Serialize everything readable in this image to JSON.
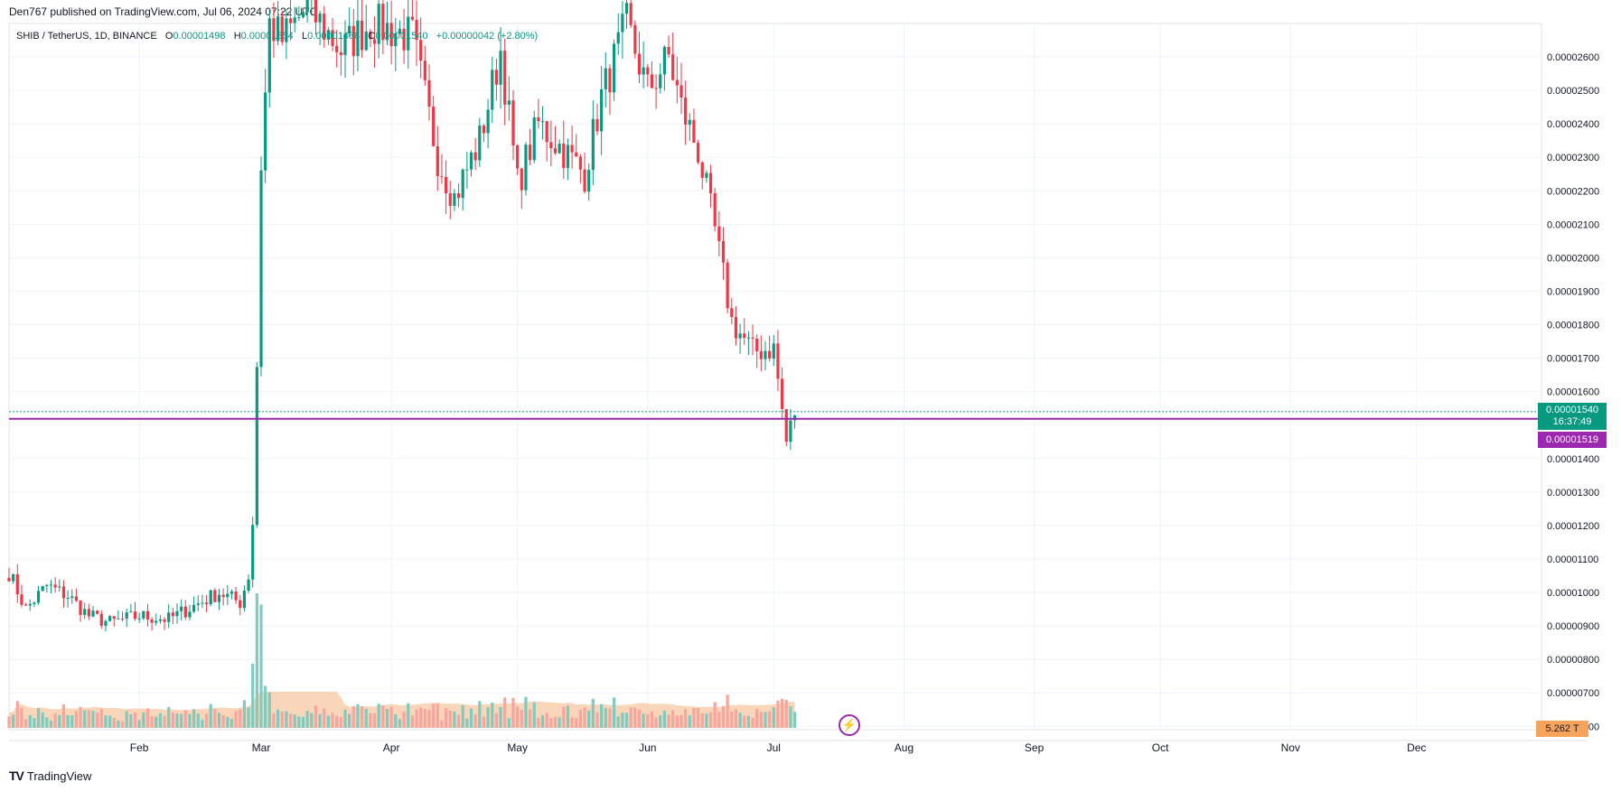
{
  "header": {
    "published": "Den767 published on TradingView.com, Jul 06, 2024 07:22 UTC",
    "symbol": "SHIB / TetherUS, 1D, BINANCE",
    "open_label": "O",
    "open": "0.00001498",
    "high_label": "H",
    "high": "0.00001554",
    "low_label": "L",
    "low": "0.00001488",
    "close_label": "C",
    "close": "0.00001540",
    "change": "+0.00000042 (+2.80%)"
  },
  "footer": {
    "brand": "TradingView",
    "logo": "tradingview-logo-icon"
  },
  "badges": {
    "last_price": "0.00001540",
    "countdown": "16:37:49",
    "ma_value": "0.00001519",
    "volume": "5.262 T"
  },
  "colors": {
    "up": "#089981",
    "down": "#f23645",
    "vol_up": "#7fcbbf",
    "vol_down": "#f7a59e",
    "vol_ma": "#f7c49b",
    "ma_line": "#9c27b0",
    "grid": "#f0f3fa",
    "axis_text": "#131722"
  },
  "chart_data": {
    "type": "candlestick",
    "symbol": "SHIB / TetherUS",
    "timeframe": "1D",
    "exchange": "BINANCE",
    "y_axis_ticks": [
      "0.00002600",
      "0.00002500",
      "0.00002400",
      "0.00002300",
      "0.00002200",
      "0.00002100",
      "0.00002000",
      "0.00001900",
      "0.00001800",
      "0.00001700",
      "0.00001600",
      "0.00001500",
      "0.00001400",
      "0.00001300",
      "0.00001200",
      "0.00001100",
      "0.00001000",
      "0.00000900",
      "0.00000800",
      "0.00000700",
      "0.00000600"
    ],
    "x_axis_ticks": [
      "Feb",
      "Mar",
      "Apr",
      "May",
      "Jun",
      "Jul",
      "Aug",
      "Sep",
      "Oct",
      "Nov",
      "Dec"
    ],
    "ylim": [
      5.9e-06,
      2.7e-05
    ],
    "last_price": 1.54e-05,
    "ma_value": 1.519e-05,
    "volume_label": "5.262 T",
    "anchor_points": [
      [
        "2024-01-01",
        1.06e-05
      ],
      [
        "2024-01-05",
        9.5e-06
      ],
      [
        "2024-01-10",
        1.02e-05
      ],
      [
        "2024-01-15",
        9.9e-06
      ],
      [
        "2024-01-20",
        9.3e-06
      ],
      [
        "2024-01-25",
        9.1e-06
      ],
      [
        "2024-02-01",
        9.3e-06
      ],
      [
        "2024-02-08",
        9.2e-06
      ],
      [
        "2024-02-14",
        9.6e-06
      ],
      [
        "2024-02-20",
        1e-05
      ],
      [
        "2024-02-25",
        9.7e-06
      ],
      [
        "2024-02-27",
        1.05e-05
      ],
      [
        "2024-02-28",
        1.21e-05
      ],
      [
        "2024-02-29",
        1.68e-05
      ],
      [
        "2024-03-01",
        2.28e-05
      ],
      [
        "2024-03-03",
        2.7e-05
      ],
      [
        "2024-03-06",
        2.65e-05
      ],
      [
        "2024-03-12",
        2.75e-05
      ],
      [
        "2024-03-20",
        2.62e-05
      ],
      [
        "2024-03-27",
        2.7e-05
      ],
      [
        "2024-04-06",
        2.66e-05
      ],
      [
        "2024-04-12",
        2.3e-05
      ],
      [
        "2024-04-16",
        2.18e-05
      ],
      [
        "2024-04-22",
        2.35e-05
      ],
      [
        "2024-04-27",
        2.62e-05
      ],
      [
        "2024-05-01",
        2.22e-05
      ],
      [
        "2024-05-06",
        2.4e-05
      ],
      [
        "2024-05-12",
        2.32e-05
      ],
      [
        "2024-05-17",
        2.25e-05
      ],
      [
        "2024-05-21",
        2.48e-05
      ],
      [
        "2024-05-27",
        2.7e-05
      ],
      [
        "2024-06-01",
        2.5e-05
      ],
      [
        "2024-06-06",
        2.6e-05
      ],
      [
        "2024-06-09",
        2.45e-05
      ],
      [
        "2024-06-13",
        2.32e-05
      ],
      [
        "2024-06-17",
        2.08e-05
      ],
      [
        "2024-06-21",
        1.81e-05
      ],
      [
        "2024-06-26",
        1.72e-05
      ],
      [
        "2024-07-01",
        1.73e-05
      ],
      [
        "2024-07-04",
        1.45e-05
      ],
      [
        "2024-07-06",
        1.54e-05
      ]
    ]
  }
}
